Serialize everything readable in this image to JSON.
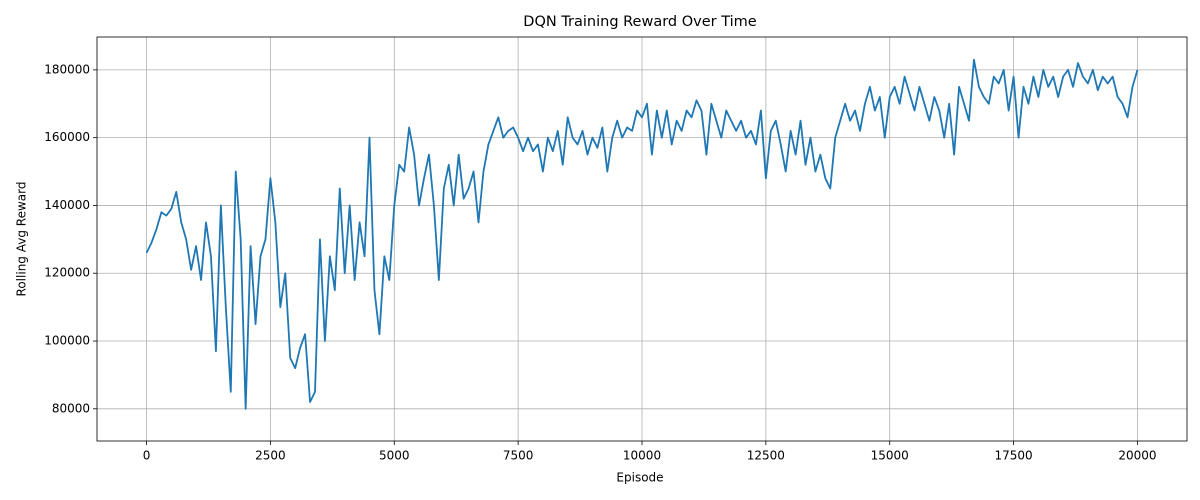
{
  "chart_data": {
    "type": "line",
    "title": "DQN Training Reward Over Time",
    "x_label": "Episode",
    "y_label": "Rolling Avg Reward",
    "xlim": [
      -1000,
      21000
    ],
    "ylim": [
      70500,
      189700
    ],
    "xticks": [
      0,
      2500,
      5000,
      7500,
      10000,
      12500,
      15000,
      17500,
      20000
    ],
    "yticks": [
      80000,
      100000,
      120000,
      140000,
      160000,
      180000
    ],
    "grid": true,
    "x": [
      0,
      100,
      200,
      300,
      400,
      500,
      600,
      700,
      800,
      900,
      1000,
      1100,
      1200,
      1300,
      1400,
      1500,
      1600,
      1700,
      1800,
      1900,
      2000,
      2100,
      2200,
      2300,
      2400,
      2500,
      2600,
      2700,
      2800,
      2900,
      3000,
      3100,
      3200,
      3300,
      3400,
      3500,
      3600,
      3700,
      3800,
      3900,
      4000,
      4100,
      4200,
      4300,
      4400,
      4500,
      4600,
      4700,
      4800,
      4900,
      5000,
      5100,
      5200,
      5300,
      5400,
      5500,
      5600,
      5700,
      5800,
      5900,
      6000,
      6100,
      6200,
      6300,
      6400,
      6500,
      6600,
      6700,
      6800,
      6900,
      7000,
      7100,
      7200,
      7300,
      7400,
      7500,
      7600,
      7700,
      7800,
      7900,
      8000,
      8100,
      8200,
      8300,
      8400,
      8500,
      8600,
      8700,
      8800,
      8900,
      9000,
      9100,
      9200,
      9300,
      9400,
      9500,
      9600,
      9700,
      9800,
      9900,
      10000,
      10100,
      10200,
      10300,
      10400,
      10500,
      10600,
      10700,
      10800,
      10900,
      11000,
      11100,
      11200,
      11300,
      11400,
      11500,
      11600,
      11700,
      11800,
      11900,
      12000,
      12100,
      12200,
      12300,
      12400,
      12500,
      12600,
      12700,
      12800,
      12900,
      13000,
      13100,
      13200,
      13300,
      13400,
      13500,
      13600,
      13700,
      13800,
      13900,
      14000,
      14100,
      14200,
      14300,
      14400,
      14500,
      14600,
      14700,
      14800,
      14900,
      15000,
      15100,
      15200,
      15300,
      15400,
      15500,
      15600,
      15700,
      15800,
      15900,
      16000,
      16100,
      16200,
      16300,
      16400,
      16500,
      16600,
      16700,
      16800,
      16900,
      17000,
      17100,
      17200,
      17300,
      17400,
      17500,
      17600,
      17700,
      17800,
      17900,
      18000,
      18100,
      18200,
      18300,
      18400,
      18500,
      18600,
      18700,
      18800,
      18900,
      19000,
      19100,
      19200,
      19300,
      19400,
      19500,
      19600,
      19700,
      19800,
      19900,
      20000
    ],
    "series": [
      {
        "name": "Rolling Avg Reward",
        "color": "#1f77b4",
        "values": [
          126000,
          129000,
          133000,
          138000,
          137000,
          139000,
          144000,
          135000,
          130000,
          121000,
          128000,
          118000,
          135000,
          125000,
          97000,
          140000,
          110000,
          85000,
          150000,
          130000,
          80000,
          128000,
          105000,
          125000,
          130000,
          148000,
          135000,
          110000,
          120000,
          95000,
          92000,
          98000,
          102000,
          82000,
          85000,
          130000,
          100000,
          125000,
          115000,
          145000,
          120000,
          140000,
          118000,
          135000,
          125000,
          160000,
          115000,
          102000,
          125000,
          118000,
          140000,
          152000,
          150000,
          163000,
          155000,
          140000,
          148000,
          155000,
          140000,
          118000,
          145000,
          152000,
          140000,
          155000,
          142000,
          145000,
          150000,
          135000,
          150000,
          158000,
          162000,
          166000,
          160000,
          162000,
          163000,
          160000,
          156000,
          160000,
          156000,
          158000,
          150000,
          160000,
          156000,
          162000,
          152000,
          166000,
          160000,
          158000,
          162000,
          155000,
          160000,
          157000,
          163000,
          150000,
          160000,
          165000,
          160000,
          163000,
          162000,
          168000,
          166000,
          170000,
          155000,
          168000,
          160000,
          168000,
          158000,
          165000,
          162000,
          168000,
          166000,
          171000,
          168000,
          155000,
          170000,
          165000,
          160000,
          168000,
          165000,
          162000,
          165000,
          160000,
          162000,
          158000,
          168000,
          148000,
          162000,
          165000,
          158000,
          150000,
          162000,
          155000,
          165000,
          152000,
          160000,
          150000,
          155000,
          148000,
          145000,
          160000,
          165000,
          170000,
          165000,
          168000,
          162000,
          170000,
          175000,
          168000,
          172000,
          160000,
          172000,
          175000,
          170000,
          178000,
          173000,
          168000,
          175000,
          170000,
          165000,
          172000,
          168000,
          160000,
          170000,
          155000,
          175000,
          170000,
          165000,
          183000,
          175000,
          172000,
          170000,
          178000,
          176000,
          180000,
          168000,
          178000,
          160000,
          175000,
          170000,
          178000,
          172000,
          180000,
          175000,
          178000,
          172000,
          178000,
          180000,
          175000,
          182000,
          178000,
          176000,
          180000,
          174000,
          178000,
          176000,
          178000,
          172000,
          170000,
          166000,
          175000,
          180000
        ]
      }
    ]
  }
}
